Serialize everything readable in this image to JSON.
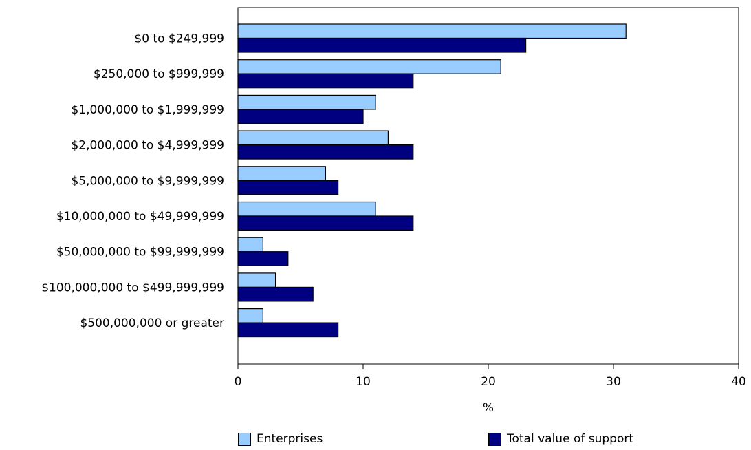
{
  "chart_data": {
    "type": "bar",
    "orientation": "horizontal",
    "categories": [
      "$0 to $249,999",
      "$250,000 to $999,999",
      "$1,000,000 to $1,999,999",
      "$2,000,000 to $4,999,999",
      "$5,000,000 to $9,999,999",
      "$10,000,000 to $49,999,999",
      "$50,000,000 to $99,999,999",
      "$100,000,000 to $499,999,999",
      "$500,000,000 or greater"
    ],
    "series": [
      {
        "name": "Enterprises",
        "color": "#99ccff",
        "values": [
          31,
          21,
          11,
          12,
          7,
          11,
          2,
          3,
          2
        ]
      },
      {
        "name": "Total value of support",
        "color": "#000080",
        "values": [
          23,
          14,
          10,
          14,
          8,
          14,
          4,
          6,
          8
        ]
      }
    ],
    "xlabel": "%",
    "xlim": [
      0,
      40
    ],
    "xticks": [
      "0",
      "10",
      "20",
      "30",
      "40"
    ],
    "grid": false,
    "legend_position": "bottom"
  }
}
